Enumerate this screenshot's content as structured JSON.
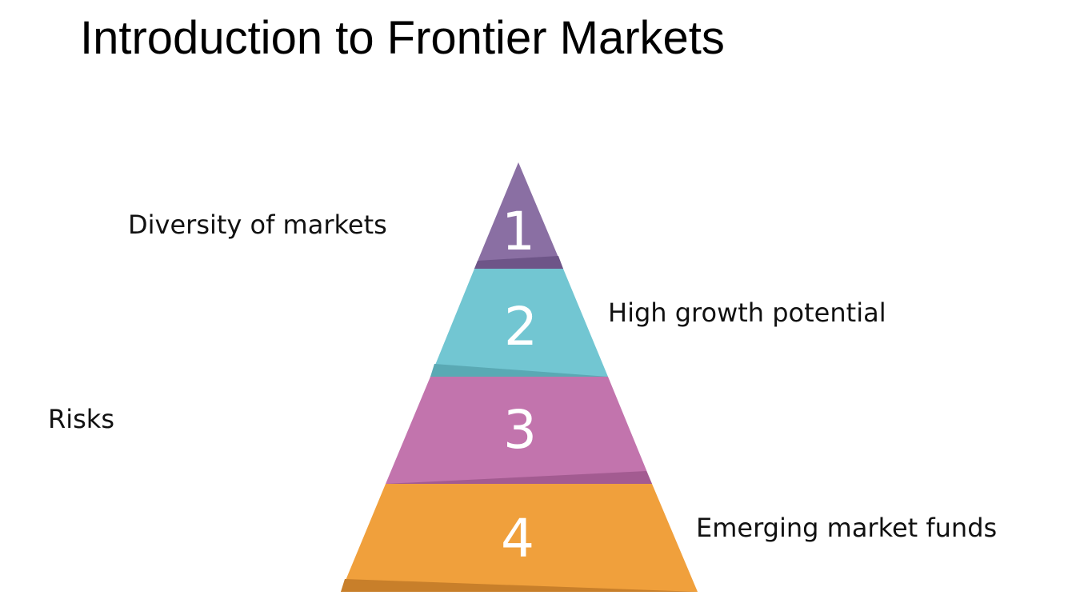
{
  "title": "Introduction to Frontier Markets",
  "pyramid": {
    "tiers": [
      {
        "number": "1",
        "color": "#8a6fa3",
        "shadow": "#6e5588"
      },
      {
        "number": "2",
        "color": "#72c6d2",
        "shadow": "#5aa9b4"
      },
      {
        "number": "3",
        "color": "#c274ad",
        "shadow": "#a35b91"
      },
      {
        "number": "4",
        "color": "#f0a03c",
        "shadow": "#c87f2a"
      }
    ]
  },
  "labels": {
    "diversity": "Diversity of markets",
    "growth": "High growth potential",
    "risks": "Risks",
    "funds": "Emerging market funds"
  }
}
